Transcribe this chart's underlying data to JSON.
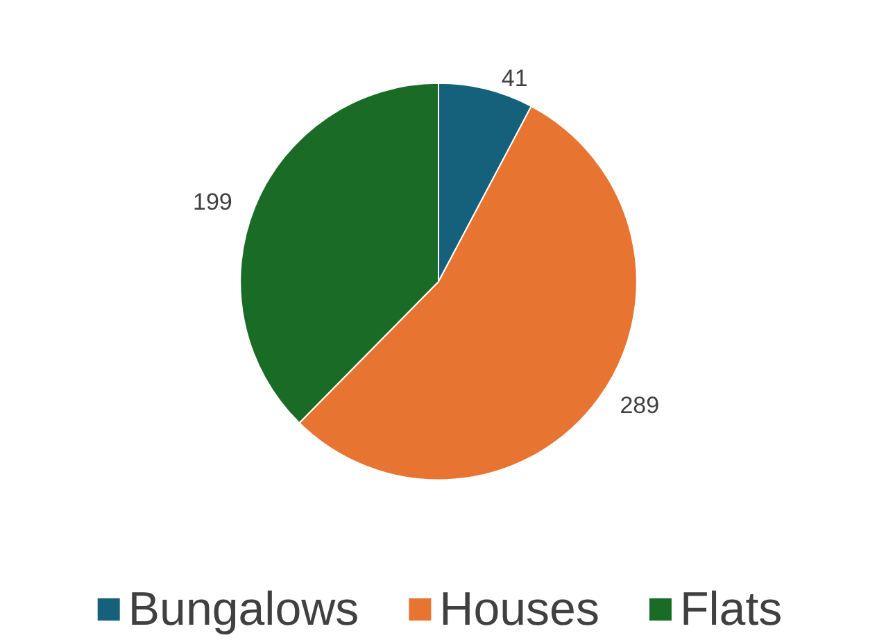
{
  "chart_data": {
    "type": "pie",
    "categories": [
      "Bungalows",
      "Houses",
      "Flats"
    ],
    "values": [
      41,
      289,
      199
    ],
    "colors": [
      "#15607a",
      "#e87432",
      "#1a6b26"
    ],
    "data_labels": true,
    "legend": "bottom"
  }
}
